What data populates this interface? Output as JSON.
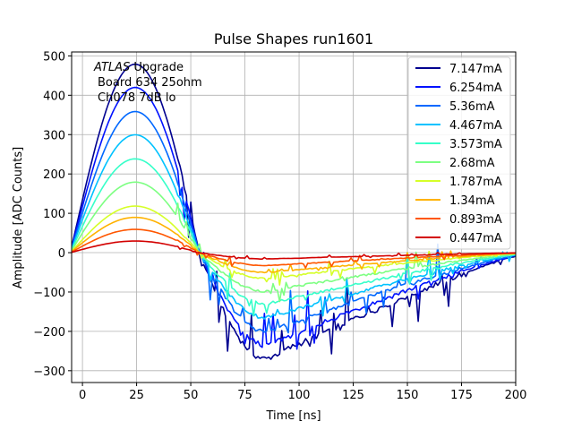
{
  "chart_data": {
    "type": "line",
    "title": "Pulse Shapes run1601",
    "xlabel": "Time [ns]",
    "ylabel": "Amplitude [ADC Counts]",
    "xlim": [
      -5,
      200
    ],
    "ylim": [
      -330,
      510
    ],
    "xticks": [
      0,
      25,
      50,
      75,
      100,
      125,
      150,
      175,
      200
    ],
    "yticks": [
      -300,
      -200,
      -100,
      0,
      100,
      200,
      300,
      400,
      500
    ],
    "grid": true,
    "legend_position": "top-right",
    "annotation": {
      "line1_italic": "ATLAS",
      "line1_rest": " Upgrade",
      "line2": "Board 634 25ohm",
      "line3": "Ch078 7dB lo"
    },
    "shape": {
      "peak_time": 24,
      "zero_crossing": 54,
      "undershoot_time": 85,
      "end_time": 200,
      "end_fraction": 0.035
    },
    "series": [
      {
        "name": "7.147mA",
        "peak": 470,
        "trough": -270,
        "color": "#00008f"
      },
      {
        "name": "6.254mA",
        "peak": 412,
        "trough": -235,
        "color": "#0012ff"
      },
      {
        "name": "5.36mA",
        "peak": 352,
        "trough": -200,
        "color": "#0068ff"
      },
      {
        "name": "4.467mA",
        "peak": 294,
        "trough": -165,
        "color": "#00c2ff"
      },
      {
        "name": "3.573mA",
        "peak": 234,
        "trough": -130,
        "color": "#36ffc9"
      },
      {
        "name": "2.68mA",
        "peak": 176,
        "trough": -98,
        "color": "#7dff82"
      },
      {
        "name": "1.787mA",
        "peak": 116,
        "trough": -65,
        "color": "#d6ff29"
      },
      {
        "name": "1.34mA",
        "peak": 88,
        "trough": -50,
        "color": "#ffb200"
      },
      {
        "name": "0.893mA",
        "peak": 58,
        "trough": -33,
        "color": "#ff5600"
      },
      {
        "name": "0.447mA",
        "peak": 29,
        "trough": -16,
        "color": "#d30000"
      }
    ]
  }
}
